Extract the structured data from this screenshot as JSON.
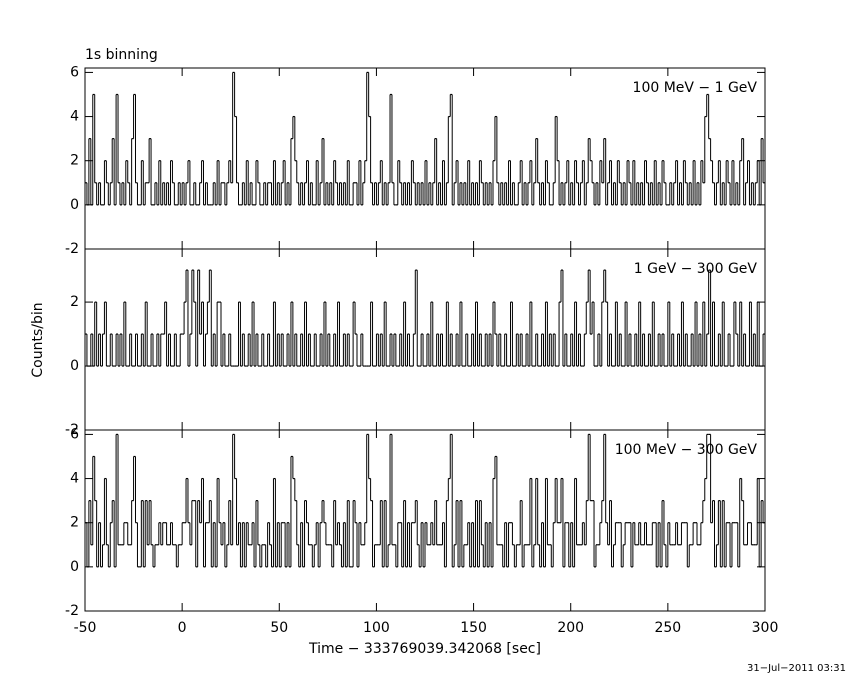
{
  "chart_data": {
    "type": "step",
    "title": "1s binning",
    "xlabel": "Time − 333769039.342068 [sec]",
    "ylabel": "Counts/bin",
    "timestamp": "31−Jul−2011 03:31",
    "color": "#000000",
    "xlim": [
      -50,
      300
    ],
    "xticks": [
      -50,
      0,
      50,
      100,
      150,
      200,
      250,
      300
    ],
    "x": [
      -50,
      -49,
      -48,
      -47,
      -46,
      -45,
      -44,
      -43,
      -42,
      -41,
      -40,
      -39,
      -38,
      -37,
      -36,
      -35,
      -34,
      -33,
      -32,
      -31,
      -30,
      -29,
      -28,
      -27,
      -26,
      -25,
      -24,
      -23,
      -22,
      -21,
      -20,
      -19,
      -18,
      -17,
      -16,
      -15,
      -14,
      -13,
      -12,
      -11,
      -10,
      -9,
      -8,
      -7,
      -6,
      -5,
      -4,
      -3,
      -2,
      -1,
      0,
      1,
      2,
      3,
      4,
      5,
      6,
      7,
      8,
      9,
      10,
      11,
      12,
      13,
      14,
      15,
      16,
      17,
      18,
      19,
      20,
      21,
      22,
      23,
      24,
      25,
      26,
      27,
      28,
      29,
      30,
      31,
      32,
      33,
      34,
      35,
      36,
      37,
      38,
      39,
      40,
      41,
      42,
      43,
      44,
      45,
      46,
      47,
      48,
      49,
      50,
      51,
      52,
      53,
      54,
      55,
      56,
      57,
      58,
      59,
      60,
      61,
      62,
      63,
      64,
      65,
      66,
      67,
      68,
      69,
      70,
      71,
      72,
      73,
      74,
      75,
      76,
      77,
      78,
      79,
      80,
      81,
      82,
      83,
      84,
      85,
      86,
      87,
      88,
      89,
      90,
      91,
      92,
      93,
      94,
      95,
      96,
      97,
      98,
      99,
      100,
      101,
      102,
      103,
      104,
      105,
      106,
      107,
      108,
      109,
      110,
      111,
      112,
      113,
      114,
      115,
      116,
      117,
      118,
      119,
      120,
      121,
      122,
      123,
      124,
      125,
      126,
      127,
      128,
      129,
      130,
      131,
      132,
      133,
      134,
      135,
      136,
      137,
      138,
      139,
      140,
      141,
      142,
      143,
      144,
      145,
      146,
      147,
      148,
      149,
      150,
      151,
      152,
      153,
      154,
      155,
      156,
      157,
      158,
      159,
      160,
      161,
      162,
      163,
      164,
      165,
      166,
      167,
      168,
      169,
      170,
      171,
      172,
      173,
      174,
      175,
      176,
      177,
      178,
      179,
      180,
      181,
      182,
      183,
      184,
      185,
      186,
      187,
      188,
      189,
      190,
      191,
      192,
      193,
      194,
      195,
      196,
      197,
      198,
      199,
      200,
      201,
      202,
      203,
      204,
      205,
      206,
      207,
      208,
      209,
      210,
      211,
      212,
      213,
      214,
      215,
      216,
      217,
      218,
      219,
      220,
      221,
      222,
      223,
      224,
      225,
      226,
      227,
      228,
      229,
      230,
      231,
      232,
      233,
      234,
      235,
      236,
      237,
      238,
      239,
      240,
      241,
      242,
      243,
      244,
      245,
      246,
      247,
      248,
      249,
      250,
      251,
      252,
      253,
      254,
      255,
      256,
      257,
      258,
      259,
      260,
      261,
      262,
      263,
      264,
      265,
      266,
      267,
      268,
      269,
      270,
      271,
      272,
      273,
      274,
      275,
      276,
      277,
      278,
      279,
      280,
      281,
      282,
      283,
      284,
      285,
      286,
      287,
      288,
      289,
      290,
      291,
      292,
      293,
      294,
      295,
      296,
      297,
      298,
      299
    ],
    "panels": [
      {
        "label": "100 MeV − 1 GeV",
        "ylim": [
          -2,
          6.2
        ],
        "yticks": [
          -2,
          0,
          2,
          4,
          6
        ],
        "values": [
          1,
          0,
          3,
          0,
          5,
          1,
          0,
          1,
          0,
          0,
          2,
          1,
          0,
          1,
          3,
          0,
          5,
          1,
          0,
          1,
          0,
          2,
          1,
          0,
          3,
          5,
          1,
          0,
          0,
          2,
          0,
          1,
          1,
          3,
          0,
          0,
          1,
          0,
          2,
          0,
          1,
          0,
          1,
          0,
          2,
          1,
          0,
          0,
          1,
          0,
          1,
          0,
          1,
          2,
          0,
          0,
          1,
          0,
          0,
          1,
          2,
          0,
          1,
          0,
          0,
          0,
          1,
          0,
          2,
          0,
          1,
          1,
          0,
          1,
          2,
          1,
          6,
          4,
          1,
          0,
          0,
          1,
          0,
          2,
          0,
          1,
          0,
          0,
          2,
          1,
          0,
          0,
          1,
          0,
          1,
          1,
          0,
          2,
          0,
          1,
          0,
          1,
          2,
          0,
          1,
          0,
          3,
          4,
          2,
          1,
          0,
          1,
          0,
          1,
          2,
          0,
          1,
          0,
          0,
          2,
          0,
          1,
          3,
          0,
          1,
          0,
          1,
          0,
          2,
          1,
          0,
          1,
          0,
          1,
          0,
          2,
          0,
          0,
          1,
          1,
          0,
          2,
          0,
          1,
          2,
          6,
          4,
          1,
          0,
          1,
          0,
          1,
          2,
          0,
          1,
          0,
          1,
          5,
          1,
          0,
          0,
          2,
          1,
          0,
          1,
          0,
          1,
          0,
          2,
          1,
          0,
          1,
          0,
          1,
          0,
          2,
          0,
          1,
          0,
          1,
          3,
          0,
          1,
          0,
          2,
          0,
          1,
          4,
          5,
          0,
          1,
          2,
          0,
          1,
          0,
          1,
          0,
          2,
          0,
          1,
          0,
          1,
          0,
          2,
          1,
          0,
          1,
          0,
          1,
          0,
          2,
          4,
          1,
          0,
          1,
          0,
          1,
          0,
          2,
          0,
          1,
          0,
          0,
          1,
          2,
          0,
          1,
          0,
          1,
          2,
          0,
          1,
          3,
          1,
          0,
          1,
          0,
          2,
          1,
          0,
          0,
          1,
          4,
          2,
          0,
          1,
          0,
          1,
          2,
          0,
          1,
          0,
          2,
          1,
          0,
          1,
          2,
          0,
          1,
          3,
          2,
          1,
          0,
          1,
          0,
          2,
          1,
          3,
          0,
          1,
          2,
          0,
          1,
          0,
          2,
          1,
          0,
          1,
          0,
          2,
          1,
          0,
          2,
          0,
          1,
          0,
          1,
          0,
          2,
          1,
          0,
          1,
          0,
          2,
          0,
          1,
          0,
          2,
          1,
          0,
          0,
          1,
          0,
          1,
          2,
          0,
          1,
          0,
          2,
          1,
          0,
          1,
          0,
          2,
          0,
          1,
          0,
          2,
          1,
          4,
          5,
          3,
          2,
          1,
          0,
          1,
          2,
          0,
          1,
          0,
          2,
          1,
          0,
          2,
          0,
          1,
          0,
          2,
          3,
          0,
          1,
          2,
          0,
          1,
          0,
          1,
          2,
          0,
          3,
          1
        ]
      },
      {
        "label": "1 GeV − 300 GeV",
        "ylim": [
          -2,
          3.66
        ],
        "yticks": [
          -2,
          0,
          2
        ],
        "values": [
          1,
          0,
          0,
          1,
          0,
          2,
          0,
          1,
          0,
          1,
          2,
          0,
          0,
          1,
          0,
          0,
          1,
          0,
          1,
          0,
          2,
          0,
          0,
          1,
          0,
          0,
          1,
          0,
          0,
          1,
          0,
          2,
          0,
          0,
          1,
          0,
          0,
          1,
          0,
          1,
          1,
          2,
          0,
          1,
          0,
          0,
          1,
          0,
          0,
          1,
          1,
          2,
          3,
          0,
          1,
          3,
          2,
          0,
          3,
          1,
          2,
          0,
          1,
          2,
          3,
          0,
          1,
          0,
          2,
          2,
          0,
          1,
          0,
          0,
          1,
          0,
          0,
          0,
          0,
          2,
          0,
          1,
          0,
          0,
          1,
          0,
          2,
          0,
          1,
          0,
          0,
          1,
          0,
          0,
          1,
          0,
          0,
          2,
          0,
          1,
          0,
          1,
          0,
          0,
          1,
          0,
          2,
          0,
          1,
          0,
          0,
          1,
          0,
          2,
          0,
          1,
          0,
          0,
          1,
          0,
          0,
          1,
          0,
          2,
          0,
          1,
          0,
          0,
          1,
          0,
          2,
          0,
          0,
          1,
          0,
          1,
          0,
          0,
          2,
          1,
          0,
          0,
          1,
          0,
          0,
          0,
          0,
          2,
          0,
          0,
          1,
          0,
          1,
          0,
          2,
          0,
          0,
          1,
          0,
          1,
          0,
          0,
          1,
          0,
          2,
          0,
          1,
          0,
          0,
          1,
          3,
          0,
          0,
          1,
          0,
          0,
          1,
          0,
          2,
          0,
          0,
          1,
          0,
          1,
          0,
          0,
          2,
          0,
          1,
          0,
          0,
          1,
          0,
          2,
          0,
          0,
          1,
          0,
          0,
          1,
          0,
          2,
          0,
          1,
          0,
          0,
          1,
          0,
          1,
          0,
          2,
          1,
          0,
          1,
          0,
          0,
          1,
          0,
          0,
          2,
          0,
          0,
          1,
          0,
          1,
          0,
          0,
          1,
          0,
          2,
          0,
          0,
          1,
          0,
          0,
          1,
          0,
          2,
          0,
          1,
          0,
          1,
          0,
          0,
          2,
          3,
          0,
          1,
          0,
          0,
          1,
          0,
          2,
          0,
          1,
          0,
          0,
          1,
          2,
          3,
          1,
          2,
          0,
          0,
          1,
          0,
          2,
          3,
          2,
          0,
          1,
          0,
          0,
          2,
          0,
          1,
          0,
          0,
          2,
          0,
          1,
          0,
          0,
          1,
          0,
          2,
          0,
          1,
          0,
          0,
          1,
          0,
          2,
          0,
          0,
          1,
          0,
          1,
          0,
          0,
          2,
          0,
          1,
          0,
          0,
          1,
          0,
          2,
          0,
          1,
          0,
          0,
          1,
          0,
          2,
          0,
          1,
          0,
          2,
          0,
          1,
          3,
          0,
          2,
          0,
          0,
          1,
          0,
          2,
          0,
          0,
          1,
          0,
          0,
          2,
          1,
          0,
          2,
          0,
          1,
          0,
          0,
          2,
          0,
          1,
          0,
          2,
          0,
          0,
          1
        ]
      },
      {
        "label": "100 MeV − 300 GeV",
        "ylim": [
          -2,
          6.2
        ],
        "yticks": [
          -2,
          0,
          2,
          4,
          6
        ],
        "values": [
          2,
          0,
          3,
          1,
          5,
          3,
          0,
          2,
          0,
          1,
          4,
          1,
          0,
          2,
          3,
          0,
          6,
          1,
          1,
          1,
          2,
          2,
          1,
          1,
          3,
          5,
          2,
          0,
          0,
          3,
          0,
          3,
          1,
          3,
          1,
          0,
          1,
          1,
          2,
          1,
          2,
          2,
          1,
          1,
          2,
          1,
          1,
          0,
          1,
          1,
          2,
          2,
          4,
          2,
          1,
          3,
          3,
          0,
          3,
          2,
          4,
          0,
          2,
          2,
          3,
          0,
          2,
          0,
          4,
          2,
          1,
          2,
          0,
          1,
          3,
          1,
          6,
          4,
          1,
          2,
          0,
          2,
          0,
          2,
          1,
          1,
          2,
          0,
          3,
          1,
          0,
          1,
          1,
          0,
          2,
          1,
          0,
          4,
          0,
          2,
          0,
          2,
          2,
          0,
          2,
          0,
          5,
          4,
          3,
          1,
          0,
          2,
          0,
          3,
          2,
          1,
          1,
          0,
          1,
          2,
          0,
          2,
          3,
          2,
          1,
          1,
          1,
          0,
          3,
          1,
          2,
          1,
          0,
          2,
          0,
          3,
          0,
          0,
          3,
          2,
          0,
          2,
          1,
          1,
          2,
          6,
          4,
          3,
          0,
          1,
          1,
          1,
          3,
          0,
          3,
          0,
          1,
          6,
          1,
          1,
          0,
          2,
          2,
          0,
          3,
          0,
          2,
          0,
          2,
          2,
          3,
          1,
          0,
          2,
          0,
          2,
          1,
          1,
          2,
          1,
          3,
          1,
          1,
          1,
          2,
          0,
          3,
          4,
          6,
          0,
          1,
          3,
          0,
          3,
          0,
          1,
          1,
          2,
          0,
          2,
          0,
          3,
          0,
          3,
          1,
          0,
          2,
          0,
          2,
          0,
          4,
          5,
          1,
          1,
          1,
          0,
          2,
          0,
          2,
          2,
          1,
          0,
          1,
          1,
          3,
          0,
          1,
          1,
          1,
          4,
          0,
          1,
          4,
          1,
          0,
          2,
          0,
          4,
          1,
          1,
          0,
          2,
          4,
          2,
          2,
          4,
          0,
          2,
          2,
          0,
          2,
          0,
          4,
          1,
          1,
          1,
          2,
          1,
          3,
          6,
          3,
          3,
          0,
          1,
          1,
          2,
          3,
          6,
          2,
          1,
          3,
          0,
          1,
          2,
          2,
          2,
          0,
          1,
          2,
          2,
          2,
          0,
          2,
          1,
          1,
          2,
          1,
          1,
          2,
          1,
          1,
          1,
          2,
          2,
          0,
          2,
          0,
          3,
          1,
          0,
          2,
          1,
          1,
          1,
          2,
          1,
          1,
          2,
          2,
          2,
          0,
          1,
          1,
          2,
          2,
          1,
          1,
          2,
          3,
          4,
          6,
          6,
          2,
          3,
          0,
          1,
          3,
          0,
          3,
          0,
          2,
          2,
          0,
          2,
          2,
          2,
          0,
          4,
          3,
          1,
          1,
          2,
          2,
          1,
          1,
          1,
          4,
          0,
          3,
          2
        ]
      }
    ]
  }
}
